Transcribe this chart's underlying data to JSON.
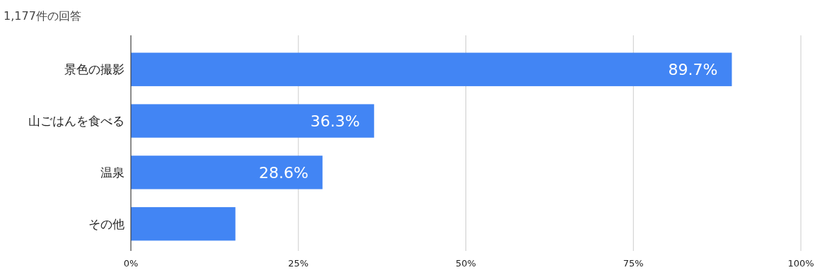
{
  "chart_data": {
    "type": "bar",
    "orientation": "horizontal",
    "title": "1,177件の回答",
    "categories": [
      "景色の撮影",
      "山ごはんを食べる",
      "温泉",
      "その他"
    ],
    "values": [
      89.7,
      36.3,
      28.6,
      15.6
    ],
    "value_labels": [
      "89.7%",
      "36.3%",
      "28.6%",
      null
    ],
    "color": "#4285f4",
    "xlim": [
      0,
      100
    ],
    "xticks": [
      {
        "value": 0,
        "label": "0%"
      },
      {
        "value": 25,
        "label": "25%"
      },
      {
        "value": 50,
        "label": "50%"
      },
      {
        "value": 75,
        "label": "75%"
      },
      {
        "value": 100,
        "label": "100%"
      }
    ],
    "grid": "x"
  }
}
